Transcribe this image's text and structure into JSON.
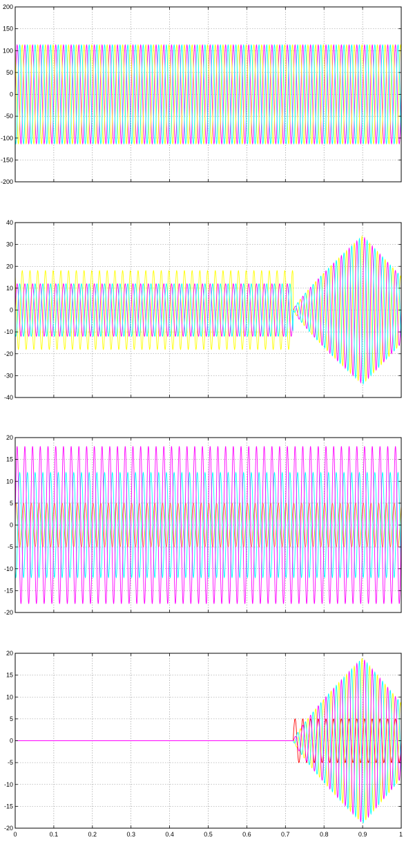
{
  "chart_data": [
    {
      "type": "line",
      "xlim": [
        0,
        1
      ],
      "ylim": [
        -200,
        200
      ],
      "yticks": [
        200,
        150,
        100,
        50,
        0,
        -50,
        -100,
        -150,
        -200
      ],
      "xticks": [],
      "grid": true,
      "series": [
        {
          "color": "#ff00ff",
          "amplitude": 113,
          "cycles": 50,
          "phase_deg": 0
        },
        {
          "color": "#ffff00",
          "amplitude": 113,
          "cycles": 50,
          "phase_deg": 120
        },
        {
          "color": "#00ffff",
          "amplitude": 113,
          "cycles": 50,
          "phase_deg": 240
        }
      ]
    },
    {
      "type": "line",
      "xlim": [
        0,
        1
      ],
      "ylim": [
        -40,
        40
      ],
      "yticks": [
        40,
        30,
        20,
        10,
        0,
        -10,
        -20,
        -30,
        -40
      ],
      "xticks": [],
      "grid": true,
      "fault_time": 0.72,
      "post_fault_peak": {
        "x": 0.9,
        "y": 34
      },
      "series": [
        {
          "color": "#ffff00",
          "pre_amplitude": 18,
          "post_peak": 34,
          "cycles": 50,
          "phase_deg": 120
        },
        {
          "color": "#ff00ff",
          "pre_amplitude": 12,
          "post_peak": 34,
          "cycles": 50,
          "phase_deg": 0
        },
        {
          "color": "#00ffff",
          "pre_amplitude": 12,
          "post_peak": 34,
          "cycles": 50,
          "phase_deg": 240
        }
      ]
    },
    {
      "type": "line",
      "xlim": [
        0,
        1
      ],
      "ylim": [
        -20,
        20
      ],
      "yticks": [
        20,
        15,
        10,
        5,
        0,
        -5,
        -10,
        -15,
        -20
      ],
      "xticks": [],
      "grid": true,
      "series": [
        {
          "color": "#ffa500",
          "amplitude": 5,
          "cycles": 50,
          "phase_deg": 60
        },
        {
          "color": "#00ffff",
          "amplitude": 12,
          "cycles": 50,
          "phase_deg": 240
        },
        {
          "color": "#ff00ff",
          "amplitude": 18,
          "cycles": 50,
          "phase_deg": 0
        }
      ]
    },
    {
      "type": "line",
      "xlim": [
        0,
        1
      ],
      "ylim": [
        -20,
        20
      ],
      "yticks": [
        20,
        15,
        10,
        5,
        0,
        -5,
        -10,
        -15,
        -20
      ],
      "xticks": [
        0,
        0.1,
        0.2,
        0.3,
        0.4,
        0.5,
        0.6,
        0.7,
        0.8,
        0.9,
        1
      ],
      "xtick_labels": [
        "0",
        "0.1",
        "0.2",
        "0.3",
        "0.4",
        "0.5",
        "0.6",
        "0.7",
        "0.8",
        "0.9",
        "1"
      ],
      "grid": true,
      "fault_time": 0.72,
      "post_fault_peak": {
        "x": 0.9,
        "y": 19
      },
      "series": [
        {
          "color": "#ff0000",
          "pre_value": 0,
          "post_amplitude": 5,
          "cycles": 50,
          "phase_deg": 0
        },
        {
          "color": "#ffff00",
          "pre_value": 0,
          "post_peak": 19,
          "cycles": 50,
          "phase_deg": 120
        },
        {
          "color": "#00ffff",
          "pre_value": 0,
          "post_peak": 19,
          "cycles": 50,
          "phase_deg": 240
        },
        {
          "color": "#ff00ff",
          "pre_value": 0,
          "post_peak": 19,
          "cycles": 50,
          "phase_deg": 0
        }
      ]
    }
  ]
}
